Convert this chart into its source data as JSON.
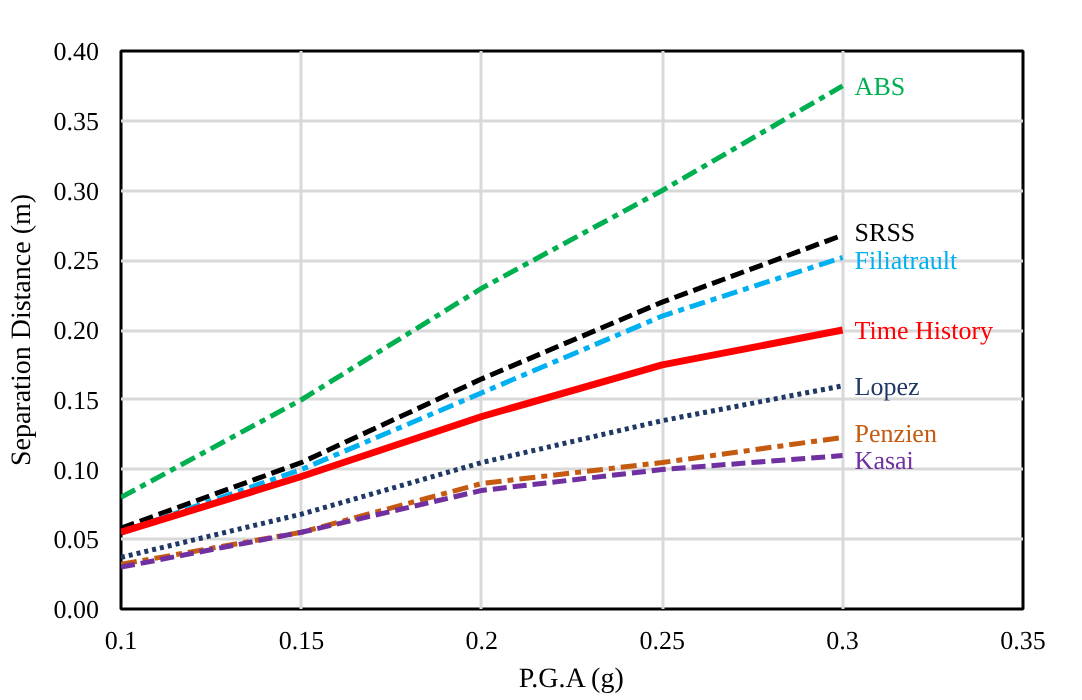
{
  "chart_data": {
    "type": "line",
    "xlabel": "P.G.A (g)",
    "ylabel": "Separation Distance (m)",
    "x": [
      0.1,
      0.15,
      0.2,
      0.25,
      0.3
    ],
    "xlim": [
      0.1,
      0.35
    ],
    "xticks": [
      0.1,
      0.15,
      0.2,
      0.25,
      0.3,
      0.35
    ],
    "ylim": [
      0,
      0.4
    ],
    "yticks": [
      {
        "value": 0,
        "label": "0.00"
      },
      {
        "value": 0.05,
        "label": "0.05"
      },
      {
        "value": 0.1,
        "label": "0.10"
      },
      {
        "value": 0.15,
        "label": "0.15"
      },
      {
        "value": 0.2,
        "label": "0.20"
      },
      {
        "value": 0.25,
        "label": "0.25"
      },
      {
        "value": 0.3,
        "label": "0.30"
      },
      {
        "value": 0.35,
        "label": "0.35"
      },
      {
        "value": 0.4,
        "label": "0.40"
      }
    ],
    "grid": true,
    "marker": "none",
    "series": [
      {
        "name": "ABS",
        "color": "#00b050",
        "line_style": "dashdot",
        "values": [
          0.08,
          0.15,
          0.23,
          0.3,
          0.375
        ]
      },
      {
        "name": "SRSS",
        "color": "#000000",
        "line_style": "dashed",
        "values": [
          0.058,
          0.105,
          0.165,
          0.22,
          0.268
        ]
      },
      {
        "name": "Filiatrault",
        "color": "#00b0f0",
        "line_style": "dashdot",
        "values": [
          0.055,
          0.1,
          0.155,
          0.21,
          0.252
        ]
      },
      {
        "name": "Time History",
        "color": "#ff0000",
        "line_style": "solid",
        "values": [
          0.055,
          0.095,
          0.138,
          0.175,
          0.2
        ]
      },
      {
        "name": "Lopez",
        "color": "#1f3864",
        "line_style": "dotted",
        "values": [
          0.037,
          0.068,
          0.105,
          0.135,
          0.16
        ]
      },
      {
        "name": "Penzien",
        "color": "#c55a11",
        "line_style": "dashdot",
        "values": [
          0.032,
          0.055,
          0.09,
          0.105,
          0.123
        ]
      },
      {
        "name": "Kasai",
        "color": "#7030a0",
        "line_style": "dashed",
        "values": [
          0.03,
          0.055,
          0.085,
          0.1,
          0.11
        ]
      }
    ]
  }
}
